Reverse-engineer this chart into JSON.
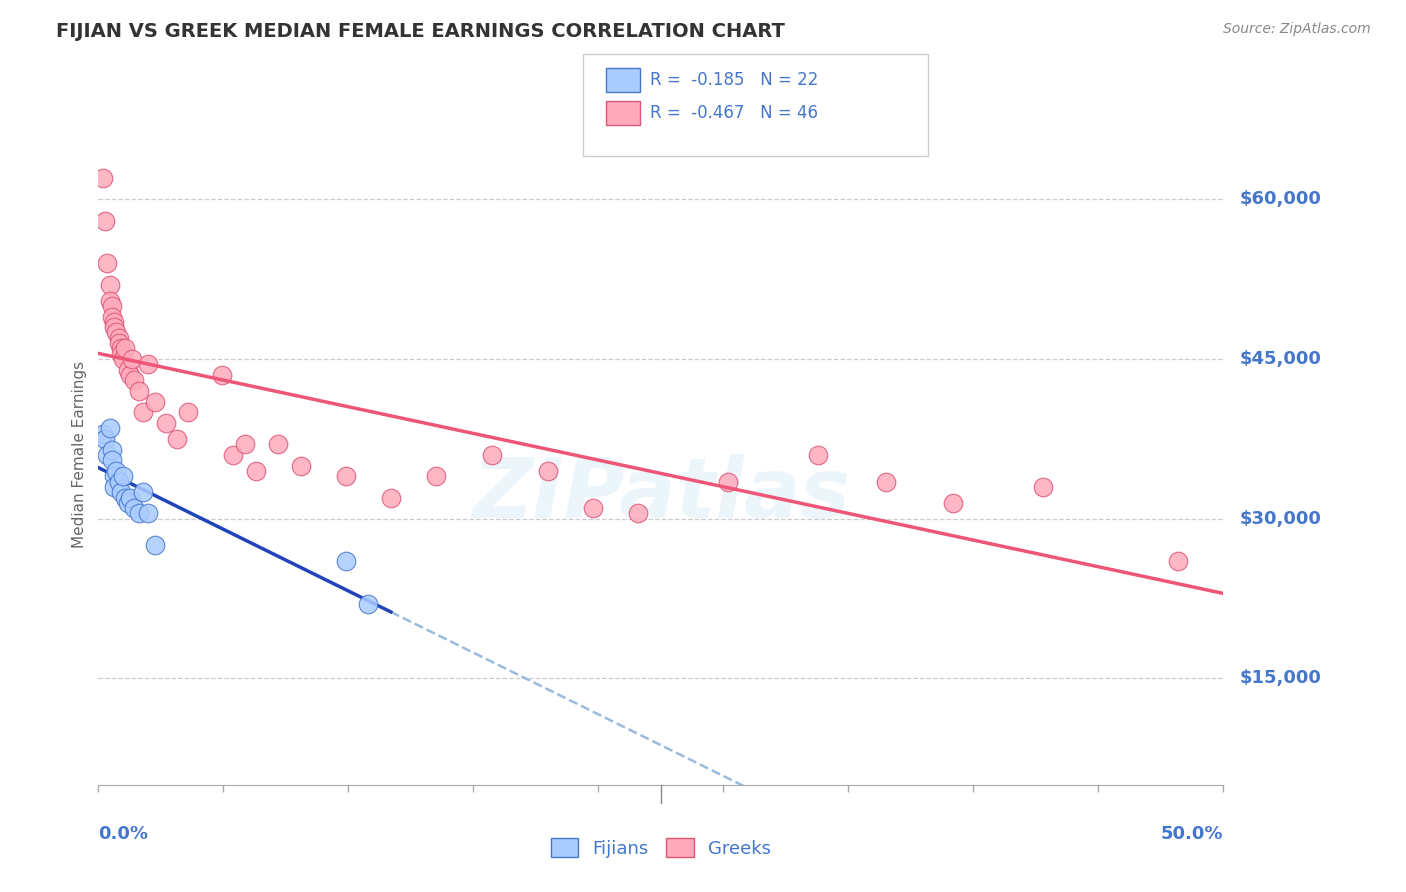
{
  "title": "FIJIAN VS GREEK MEDIAN FEMALE EARNINGS CORRELATION CHART",
  "source": "Source: ZipAtlas.com",
  "ylabel": "Median Female Earnings",
  "ytick_labels": [
    "$15,000",
    "$30,000",
    "$45,000",
    "$60,000"
  ],
  "ytick_values": [
    15000,
    30000,
    45000,
    60000
  ],
  "xmin": 0.0,
  "xmax": 0.5,
  "ymin": 5000,
  "ymax": 67000,
  "legend_fijians_r": "-0.185",
  "legend_fijians_n": "22",
  "legend_greeks_r": "-0.467",
  "legend_greeks_n": "46",
  "fijians_x": [
    0.002,
    0.003,
    0.004,
    0.005,
    0.006,
    0.006,
    0.007,
    0.007,
    0.008,
    0.009,
    0.01,
    0.011,
    0.012,
    0.013,
    0.014,
    0.016,
    0.018,
    0.02,
    0.022,
    0.025,
    0.11,
    0.12
  ],
  "fijians_y": [
    38000,
    37500,
    36000,
    38500,
    36500,
    35500,
    34000,
    33000,
    34500,
    33500,
    32500,
    34000,
    32000,
    31500,
    32000,
    31000,
    30500,
    32500,
    30500,
    27500,
    26000,
    22000
  ],
  "greeks_x": [
    0.002,
    0.003,
    0.004,
    0.005,
    0.005,
    0.006,
    0.006,
    0.007,
    0.007,
    0.008,
    0.009,
    0.009,
    0.01,
    0.01,
    0.011,
    0.012,
    0.013,
    0.014,
    0.015,
    0.016,
    0.018,
    0.02,
    0.022,
    0.025,
    0.03,
    0.035,
    0.04,
    0.055,
    0.06,
    0.065,
    0.07,
    0.08,
    0.09,
    0.11,
    0.13,
    0.15,
    0.175,
    0.2,
    0.22,
    0.24,
    0.28,
    0.32,
    0.35,
    0.38,
    0.42,
    0.48
  ],
  "greeks_y": [
    62000,
    58000,
    54000,
    52000,
    50500,
    50000,
    49000,
    48500,
    48000,
    47500,
    47000,
    46500,
    46000,
    45500,
    45000,
    46000,
    44000,
    43500,
    45000,
    43000,
    42000,
    40000,
    44500,
    41000,
    39000,
    37500,
    40000,
    43500,
    36000,
    37000,
    34500,
    37000,
    35000,
    34000,
    32000,
    34000,
    36000,
    34500,
    31000,
    30500,
    33500,
    36000,
    33500,
    31500,
    33000,
    26000
  ],
  "fijians_color": "#AACCFF",
  "greeks_color": "#FFAABB",
  "fijians_edge_color": "#4477CC",
  "greeks_edge_color": "#DD5577",
  "fijians_line_color": "#2244BB",
  "greeks_line_color": "#EE5577",
  "dashed_color": "#99BBDD",
  "watermark": "ZIPatlas",
  "bg_color": "#FFFFFF",
  "grid_color": "#CCCCCC",
  "blue_text": "#4477CC",
  "title_color": "#333333",
  "source_color": "#888888",
  "fijian_line_xmax": 0.13
}
